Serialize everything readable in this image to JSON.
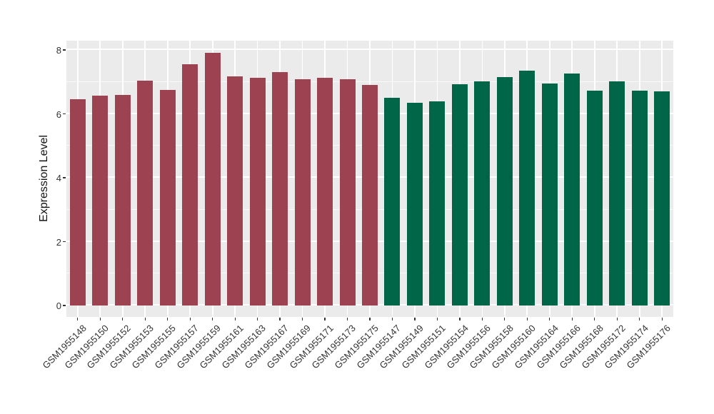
{
  "chart_data": {
    "type": "bar",
    "title": "",
    "xlabel": "",
    "ylabel": "Expression Level",
    "ylim": [
      0,
      8.3
    ],
    "yticks": [
      0,
      2,
      4,
      6,
      8
    ],
    "yticks_minor": [
      1,
      3,
      5,
      7
    ],
    "grid": true,
    "legend": false,
    "panel_background": "#EBEBEB",
    "gridline_color": "#FFFFFF",
    "axis_text_color": "#333333",
    "palette": {
      "maroon": "#9C4251",
      "green": "#006647"
    },
    "bars": [
      {
        "label": "GSM1955148",
        "value": 6.45,
        "group": "maroon"
      },
      {
        "label": "GSM1955150",
        "value": 6.57,
        "group": "maroon"
      },
      {
        "label": "GSM1955152",
        "value": 6.6,
        "group": "maroon"
      },
      {
        "label": "GSM1955153",
        "value": 7.05,
        "group": "maroon"
      },
      {
        "label": "GSM1955155",
        "value": 6.74,
        "group": "maroon"
      },
      {
        "label": "GSM1955157",
        "value": 7.55,
        "group": "maroon"
      },
      {
        "label": "GSM1955159",
        "value": 7.9,
        "group": "maroon"
      },
      {
        "label": "GSM1955161",
        "value": 7.17,
        "group": "maroon"
      },
      {
        "label": "GSM1955163",
        "value": 7.14,
        "group": "maroon"
      },
      {
        "label": "GSM1955167",
        "value": 7.31,
        "group": "maroon"
      },
      {
        "label": "GSM1955169",
        "value": 7.08,
        "group": "maroon"
      },
      {
        "label": "GSM1955171",
        "value": 7.14,
        "group": "maroon"
      },
      {
        "label": "GSM1955173",
        "value": 7.09,
        "group": "maroon"
      },
      {
        "label": "GSM1955175",
        "value": 6.91,
        "group": "maroon"
      },
      {
        "label": "GSM1955147",
        "value": 6.51,
        "group": "green"
      },
      {
        "label": "GSM1955149",
        "value": 6.34,
        "group": "green"
      },
      {
        "label": "GSM1955151",
        "value": 6.4,
        "group": "green"
      },
      {
        "label": "GSM1955154",
        "value": 6.93,
        "group": "green"
      },
      {
        "label": "GSM1955156",
        "value": 7.01,
        "group": "green"
      },
      {
        "label": "GSM1955158",
        "value": 7.16,
        "group": "green"
      },
      {
        "label": "GSM1955160",
        "value": 7.35,
        "group": "green"
      },
      {
        "label": "GSM1955164",
        "value": 6.96,
        "group": "green"
      },
      {
        "label": "GSM1955166",
        "value": 7.26,
        "group": "green"
      },
      {
        "label": "GSM1955168",
        "value": 6.73,
        "group": "green"
      },
      {
        "label": "GSM1955172",
        "value": 7.02,
        "group": "green"
      },
      {
        "label": "GSM1955174",
        "value": 6.73,
        "group": "green"
      },
      {
        "label": "GSM1955176",
        "value": 6.71,
        "group": "green"
      }
    ]
  }
}
